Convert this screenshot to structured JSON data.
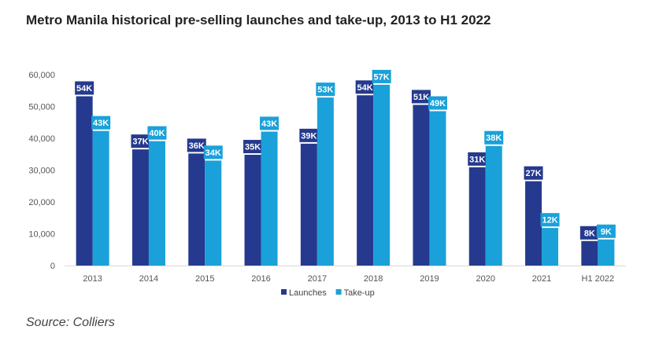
{
  "title": "Metro Manila historical pre-selling launches and take-up, 2013 to H1 2022",
  "source": "Source: Colliers",
  "chart_data": {
    "type": "bar",
    "title": "Metro Manila historical pre-selling launches and take-up, 2013 to H1 2022",
    "xlabel": "",
    "ylabel": "",
    "categories": [
      "2013",
      "2014",
      "2015",
      "2016",
      "2017",
      "2018",
      "2019",
      "2020",
      "2021",
      "H1 2022"
    ],
    "ylim": [
      0,
      60000
    ],
    "yticks": [
      "0",
      "10,000",
      "20,000",
      "30,000",
      "40,000",
      "50,000",
      "60,000"
    ],
    "grid": false,
    "legend_position": "bottom",
    "series": [
      {
        "name": "Launches",
        "color": "#253a8e",
        "values": [
          53700,
          37000,
          35700,
          35300,
          38800,
          54000,
          51000,
          31400,
          27000,
          8200
        ],
        "labels": [
          "54K",
          "37K",
          "36K",
          "35K",
          "39K",
          "54K",
          "51K",
          "31K",
          "27K",
          "8K"
        ]
      },
      {
        "name": "Take-up",
        "color": "#1aa1d9",
        "values": [
          42800,
          39600,
          33500,
          42600,
          53300,
          57300,
          49000,
          38100,
          12300,
          8700
        ],
        "labels": [
          "43K",
          "40K",
          "34K",
          "43K",
          "53K",
          "57K",
          "49K",
          "38K",
          "12K",
          "9K"
        ]
      }
    ]
  }
}
